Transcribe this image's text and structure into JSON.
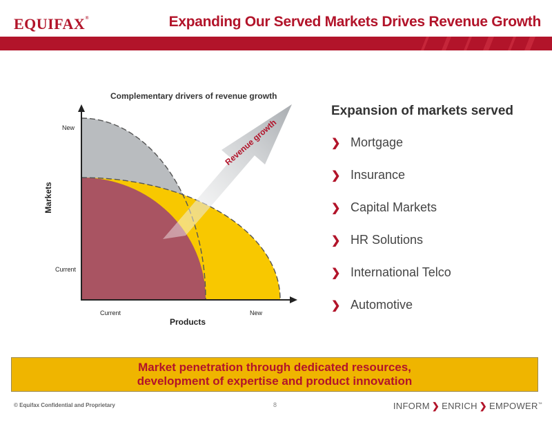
{
  "header": {
    "logo": "EQUIFAX",
    "logo_mark": "®",
    "title": "Expanding Our Served Markets Drives Revenue Growth"
  },
  "chart": {
    "title": "Complementary drivers of revenue growth",
    "y_axis_label": "Markets",
    "x_axis_label": "Products",
    "y_ticks": [
      "New",
      "Current"
    ],
    "x_ticks": [
      "Current",
      "New"
    ],
    "arrow_label": "Revenue growth"
  },
  "markets": {
    "title": "Expansion of markets served",
    "items": [
      "Mortgage",
      "Insurance",
      "Capital Markets",
      "HR Solutions",
      "International Telco",
      "Automotive"
    ]
  },
  "banner": {
    "line1": "Market penetration through dedicated resources,",
    "line2": "development of expertise and product innovation"
  },
  "footer": {
    "confidential": "© Equifax Confidential and Proprietary",
    "page_number": "8",
    "tagline": [
      "INFORM",
      "ENRICH",
      "EMPOWER"
    ],
    "tagline_mark": "™"
  },
  "colors": {
    "brand_red": "#b2142a",
    "yellow": "#f8c800",
    "gray": "#b9bcbf",
    "banner": "#efb500"
  }
}
